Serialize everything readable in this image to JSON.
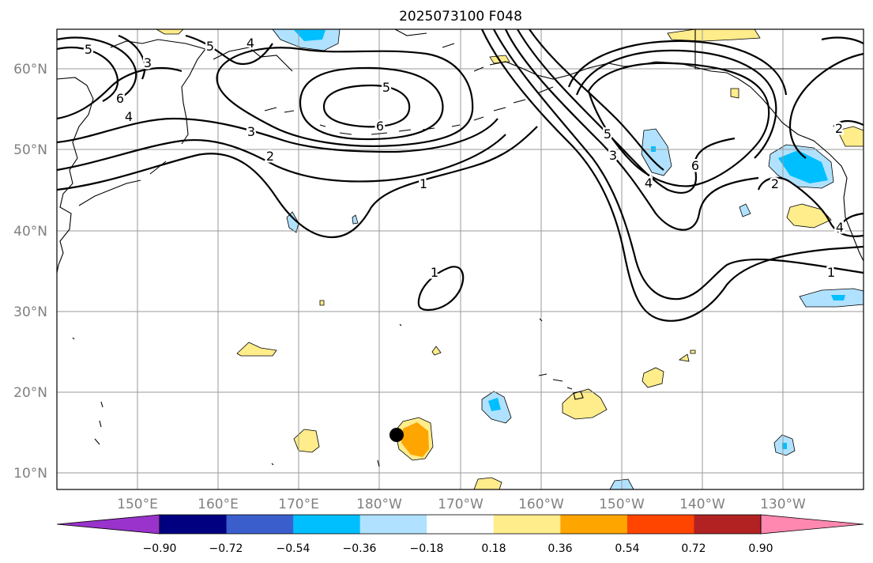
{
  "title": "2025073100 F048",
  "lat_labels": [
    "60°N",
    "50°N",
    "40°N",
    "30°N",
    "20°N",
    "10°N"
  ],
  "lon_labels": [
    "150°E",
    "160°E",
    "170°E",
    "180°W",
    "170°W",
    "160°W",
    "150°W",
    "140°W",
    "130°W"
  ],
  "contour_labels": {
    "high_center": "6",
    "high_ring5": "5",
    "ring3_west": "3",
    "ring2_west": "2",
    "ring1_center": "1",
    "subtrop_one": "1",
    "nw_five": "5",
    "nw_six": "6",
    "nw_four": "4",
    "nw_three": "3",
    "ne_five": "5",
    "ne_four": "4",
    "ne_five_b": "5",
    "ne_three": "3",
    "ne_four_b": "4",
    "ne_six": "6",
    "east_two": "2",
    "east_one": "1",
    "east_two_b": "2",
    "east_four": "4"
  },
  "colorbar": {
    "colors": [
      "#9933cc",
      "#000080",
      "#3a5fcd",
      "#00bfff",
      "#b0e2ff",
      "#ffffff",
      "#ffec8b",
      "#ffa500",
      "#ff4500",
      "#b22222",
      "#ff88b0"
    ],
    "ticks": [
      "−0.90",
      "−0.72",
      "−0.54",
      "−0.36",
      "−0.18",
      "0.18",
      "0.36",
      "0.54",
      "0.72",
      "0.90"
    ]
  },
  "colors": {
    "grid": "#9a9a9a",
    "axis_label": "#808080",
    "marker": "#000000"
  }
}
